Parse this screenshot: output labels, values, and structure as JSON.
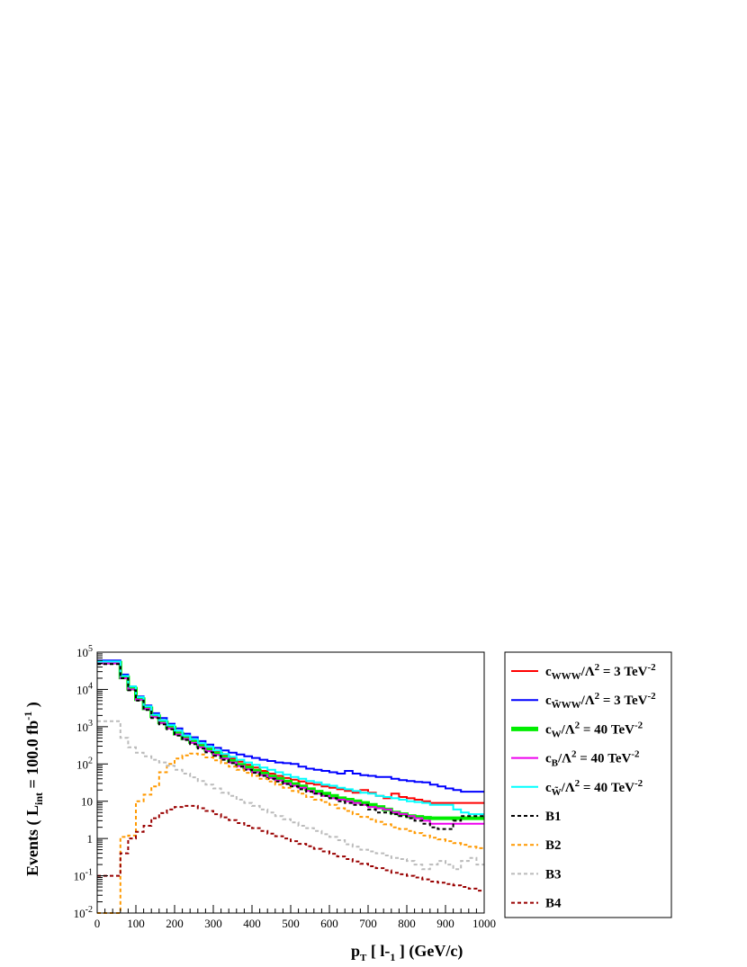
{
  "chart_data": {
    "type": "line",
    "step": true,
    "xlabel_main": "p",
    "xlabel_sub": "T",
    "xlabel_rest": " [ l-",
    "xlabel_sub2": "1",
    "xlabel_end": " ] (GeV/c)",
    "ylabel_pre": "Events  ( L",
    "ylabel_sub": "int",
    "ylabel_mid": " = 100.0 fb",
    "ylabel_sup": "-1",
    "ylabel_end": " )",
    "xlim": [
      0,
      1000
    ],
    "ylim": [
      0.01,
      100000
    ],
    "log_y": true,
    "grid": false,
    "legend_position": "right-outside",
    "x_ticks": [
      0,
      100,
      200,
      300,
      400,
      500,
      600,
      700,
      800,
      900,
      1000
    ],
    "x_tick_labels": [
      "0",
      "100",
      "200",
      "300",
      "400",
      "500",
      "600",
      "700",
      "800",
      "900",
      "1000"
    ],
    "y_ticks": [
      {
        "value": 0.01,
        "base": "10",
        "exp": "-2"
      },
      {
        "value": 0.1,
        "base": "10",
        "exp": "-1"
      },
      {
        "value": 1,
        "base": "1",
        "exp": ""
      },
      {
        "value": 10,
        "base": "10",
        "exp": ""
      },
      {
        "value": 100,
        "base": "10",
        "exp": "2"
      },
      {
        "value": 1000,
        "base": "10",
        "exp": "3"
      },
      {
        "value": 10000,
        "base": "10",
        "exp": "4"
      },
      {
        "value": 100000,
        "base": "10",
        "exp": "5"
      }
    ],
    "bin_edges": [
      0,
      20,
      40,
      60,
      80,
      100,
      120,
      140,
      160,
      180,
      200,
      220,
      240,
      260,
      280,
      300,
      320,
      340,
      360,
      380,
      400,
      420,
      440,
      460,
      480,
      500,
      520,
      540,
      560,
      580,
      600,
      620,
      640,
      660,
      680,
      700,
      720,
      740,
      760,
      780,
      800,
      820,
      840,
      860,
      880,
      900,
      920,
      940,
      960,
      980,
      1000
    ],
    "series": [
      {
        "name": "cWWW",
        "color": "#ff0000",
        "dash": false,
        "width": 2,
        "values": [
          55000,
          55000,
          55000,
          22000,
          11000,
          5800,
          3300,
          2000,
          1400,
          1000,
          700,
          520,
          420,
          330,
          260,
          210,
          170,
          140,
          115,
          95,
          80,
          65,
          55,
          48,
          42,
          38,
          34,
          30,
          28,
          25,
          23,
          21,
          19,
          17,
          20,
          17,
          14,
          12,
          16,
          13,
          12,
          11,
          10,
          9,
          9,
          9,
          9,
          9,
          9,
          9
        ]
      },
      {
        "name": "cWWWtilde",
        "color": "#0000ff",
        "dash": false,
        "width": 2,
        "values": [
          60000,
          60000,
          60000,
          25000,
          12000,
          6500,
          3700,
          2300,
          1700,
          1200,
          900,
          650,
          520,
          410,
          330,
          270,
          230,
          200,
          180,
          160,
          145,
          130,
          120,
          110,
          105,
          100,
          85,
          75,
          70,
          65,
          60,
          55,
          65,
          55,
          50,
          48,
          45,
          45,
          40,
          37,
          35,
          33,
          32,
          28,
          25,
          22,
          20,
          18,
          18,
          18
        ]
      },
      {
        "name": "cW",
        "color": "#00ee00",
        "dash": false,
        "width": 4,
        "values": [
          52000,
          52000,
          52000,
          21000,
          10500,
          5500,
          3100,
          1900,
          1300,
          950,
          650,
          490,
          390,
          300,
          240,
          190,
          150,
          120,
          95,
          80,
          66,
          55,
          46,
          40,
          34,
          29,
          25,
          21,
          18,
          16,
          14,
          12,
          11,
          10,
          9,
          8,
          7,
          6,
          5,
          4.5,
          4,
          3.8,
          3.6,
          3.5,
          3.5,
          3.5,
          3.5,
          3.5,
          3.5,
          3.5
        ]
      },
      {
        "name": "cB",
        "color": "#ee00ee",
        "dash": false,
        "width": 2,
        "values": [
          50000,
          50000,
          50000,
          20000,
          10000,
          5300,
          3000,
          1800,
          1250,
          900,
          620,
          470,
          370,
          280,
          220,
          175,
          140,
          110,
          88,
          72,
          60,
          50,
          42,
          36,
          30,
          26,
          23,
          19,
          16,
          14,
          12,
          11,
          10,
          9,
          8,
          7,
          6.5,
          6,
          5,
          4.5,
          4,
          3.5,
          3,
          2.5,
          2.5,
          2.5,
          2.5,
          2.5,
          2.5,
          2.5
        ]
      },
      {
        "name": "cWtilde",
        "color": "#00ffff",
        "dash": false,
        "width": 2,
        "values": [
          56000,
          56000,
          56000,
          23000,
          12000,
          6200,
          3500,
          2100,
          1500,
          1100,
          780,
          580,
          460,
          360,
          290,
          230,
          185,
          155,
          130,
          110,
          95,
          80,
          70,
          60,
          52,
          45,
          40,
          35,
          32,
          28,
          26,
          23,
          21,
          19,
          17,
          16,
          14,
          13,
          12,
          11,
          10,
          9.5,
          9,
          8,
          8,
          8,
          6,
          5,
          4.5,
          4.5
        ]
      },
      {
        "name": "B1",
        "color": "#000000",
        "dash": true,
        "width": 2,
        "values": [
          48000,
          48000,
          48000,
          20000,
          9500,
          5000,
          2800,
          1700,
          1150,
          850,
          580,
          440,
          340,
          260,
          205,
          165,
          130,
          105,
          85,
          70,
          58,
          48,
          40,
          34,
          29,
          25,
          21,
          18,
          16,
          14,
          12,
          10,
          9,
          8,
          8,
          6,
          5,
          5,
          4.5,
          4,
          3.5,
          3,
          2.5,
          2,
          1.8,
          1.8,
          3,
          4,
          4,
          4
        ]
      },
      {
        "name": "B2",
        "color": "#ff9900",
        "dash": true,
        "width": 2,
        "values": [
          0.01,
          0.01,
          0.01,
          1.1,
          1.2,
          10,
          15,
          25,
          60,
          100,
          140,
          170,
          190,
          180,
          150,
          125,
          105,
          85,
          70,
          58,
          48,
          40,
          34,
          28,
          23,
          19,
          16,
          13,
          11,
          9.5,
          8,
          6.5,
          5.5,
          4.5,
          3.8,
          3.3,
          2.8,
          2.4,
          2,
          1.8,
          1.6,
          1.4,
          1.2,
          1.05,
          0.95,
          0.85,
          0.75,
          0.68,
          0.6,
          0.55
        ]
      },
      {
        "name": "B3",
        "color": "#bbbbbb",
        "dash": true,
        "width": 2,
        "values": [
          1400,
          1400,
          1400,
          500,
          280,
          200,
          160,
          130,
          110,
          90,
          70,
          55,
          44,
          35,
          28,
          22,
          17,
          14,
          11,
          9,
          7.5,
          6,
          5,
          4,
          3.3,
          2.7,
          2.2,
          1.9,
          1.6,
          1.3,
          1.1,
          0.9,
          0.7,
          0.6,
          0.5,
          0.45,
          0.4,
          0.35,
          0.3,
          0.28,
          0.25,
          0.2,
          0.15,
          0.2,
          0.25,
          0.2,
          0.15,
          0.25,
          0.3,
          0.2
        ]
      },
      {
        "name": "B4",
        "color": "#990000",
        "dash": true,
        "width": 2,
        "values": [
          0.1,
          0.1,
          0.1,
          0.4,
          1.0,
          1.5,
          2.2,
          3.5,
          4.8,
          6,
          7,
          7.5,
          7.5,
          6.5,
          5.5,
          4.5,
          3.7,
          3.1,
          2.6,
          2.2,
          1.9,
          1.6,
          1.35,
          1.15,
          1.0,
          0.85,
          0.72,
          0.62,
          0.53,
          0.45,
          0.39,
          0.33,
          0.28,
          0.24,
          0.21,
          0.18,
          0.16,
          0.14,
          0.12,
          0.11,
          0.1,
          0.09,
          0.08,
          0.07,
          0.065,
          0.06,
          0.055,
          0.05,
          0.045,
          0.04
        ]
      }
    ],
    "legend": [
      {
        "series": "cWWW",
        "color": "#ff0000",
        "dash": false,
        "width": 2,
        "c": "c",
        "sub": "WWW",
        "rest": "/Λ",
        "sup1": "2",
        "mid": " = 3 TeV",
        "sup2": "-2"
      },
      {
        "series": "cWWWtilde",
        "color": "#0000ff",
        "dash": false,
        "width": 2,
        "c": "c",
        "sub": "W̃WW",
        "rest": "/Λ",
        "sup1": "2",
        "mid": " = 3 TeV",
        "sup2": "-2"
      },
      {
        "series": "cW",
        "color": "#00ee00",
        "dash": false,
        "width": 5,
        "c": "c",
        "sub": "W",
        "rest": "/Λ",
        "sup1": "2",
        "mid": " = 40 TeV",
        "sup2": "-2"
      },
      {
        "series": "cB",
        "color": "#ee00ee",
        "dash": false,
        "width": 2,
        "c": "c",
        "sub": "B",
        "rest": "/Λ",
        "sup1": "2",
        "mid": " = 40 TeV",
        "sup2": "-2"
      },
      {
        "series": "cWtilde",
        "color": "#00ffff",
        "dash": false,
        "width": 2,
        "c": "c",
        "sub": "W̃",
        "rest": "/Λ",
        "sup1": "2",
        "mid": " = 40 TeV",
        "sup2": "-2"
      },
      {
        "series": "B1",
        "color": "#000000",
        "dash": true,
        "width": 2,
        "label": "B1"
      },
      {
        "series": "B2",
        "color": "#ff9900",
        "dash": true,
        "width": 2,
        "label": "B2"
      },
      {
        "series": "B3",
        "color": "#bbbbbb",
        "dash": true,
        "width": 2,
        "label": "B3"
      },
      {
        "series": "B4",
        "color": "#990000",
        "dash": true,
        "width": 2,
        "label": "B4"
      }
    ]
  }
}
